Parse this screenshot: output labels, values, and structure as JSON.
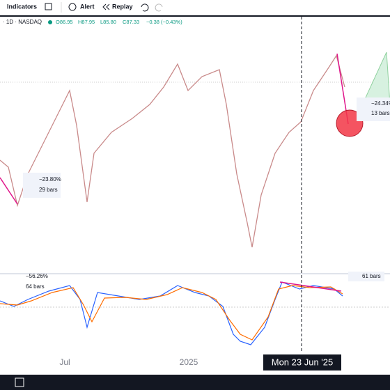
{
  "toolbar": {
    "indicators": "Indicators",
    "alert": "Alert",
    "replay": "Replay"
  },
  "legend": {
    "symbol": "· 1D · NASDAQ",
    "open": "O86.95",
    "high": "H87.95",
    "low": "L85.80",
    "close": "C87.33",
    "change": "−0.38 (−0.43%)"
  },
  "measures": [
    {
      "percent": "−23.80%",
      "bars": "29 bars"
    },
    {
      "percent": "−24.34%",
      "bars": "13 bars"
    },
    {
      "percent": "−56.26%",
      "bars": "64 bars"
    },
    {
      "bars": "61 bars"
    }
  ],
  "time_axis": {
    "labels": [
      "Jul",
      "2025"
    ],
    "crosshair": "Mon 23 Jun '25"
  }
}
